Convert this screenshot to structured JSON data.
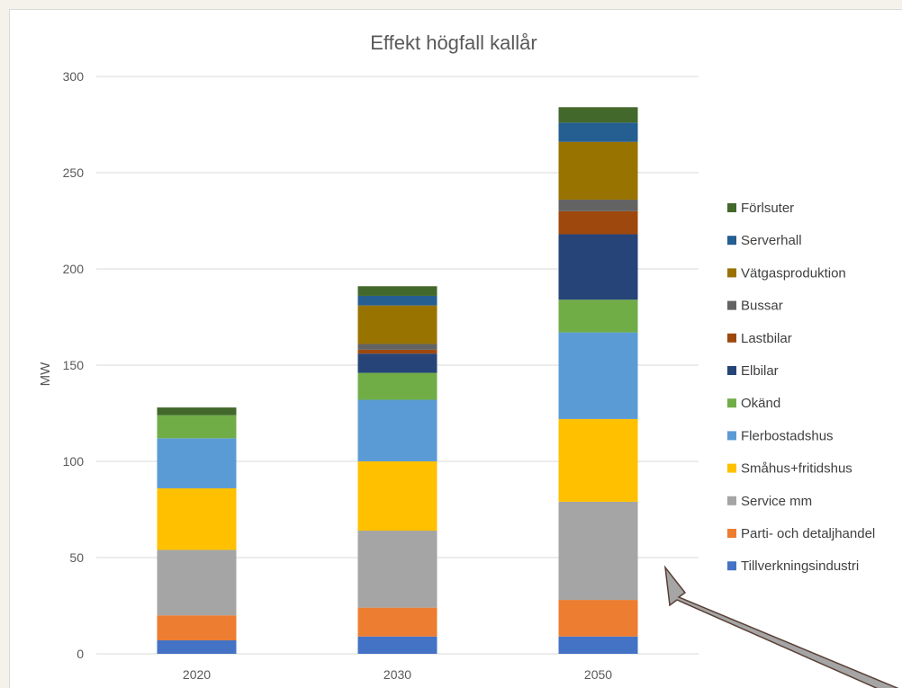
{
  "chart_data": {
    "type": "bar",
    "stacked": true,
    "title": "Effekt högfall kallår",
    "xlabel": "",
    "ylabel": "MW",
    "ylim": [
      0,
      300
    ],
    "yticks": [
      0,
      50,
      100,
      150,
      200,
      250,
      300
    ],
    "grid": true,
    "legend_position": "right",
    "categories": [
      "2020",
      "2030",
      "2050"
    ],
    "series": [
      {
        "name": "Tillverkningsindustri",
        "color": "#4472c4",
        "values": [
          7,
          9,
          9
        ]
      },
      {
        "name": "Parti- och detaljhandel",
        "color": "#ed7d31",
        "values": [
          13,
          15,
          19
        ]
      },
      {
        "name": "Service mm",
        "color": "#a5a5a5",
        "values": [
          34,
          40,
          51
        ]
      },
      {
        "name": "Småhus+fritidshus",
        "color": "#ffc000",
        "values": [
          32,
          36,
          43
        ]
      },
      {
        "name": "Flerbostadshus",
        "color": "#5b9bd5",
        "values": [
          26,
          32,
          45
        ]
      },
      {
        "name": "Okänd",
        "color": "#70ad47",
        "values": [
          12,
          14,
          17
        ]
      },
      {
        "name": "Elbilar",
        "color": "#264478",
        "values": [
          0,
          10,
          34
        ]
      },
      {
        "name": "Lastbilar",
        "color": "#9e480e",
        "values": [
          0,
          2,
          12
        ]
      },
      {
        "name": "Bussar",
        "color": "#636363",
        "values": [
          0,
          3,
          6
        ]
      },
      {
        "name": "Vätgasproduktion",
        "color": "#997300",
        "values": [
          0,
          20,
          30
        ]
      },
      {
        "name": "Serverhall",
        "color": "#255e91",
        "values": [
          0,
          5,
          10
        ]
      },
      {
        "name": "Förlsuter",
        "color": "#43682b",
        "values": [
          4,
          5,
          8
        ]
      }
    ]
  },
  "annotation_arrow": {
    "color": "#a5a5a5",
    "outline": "#5a3f36"
  }
}
